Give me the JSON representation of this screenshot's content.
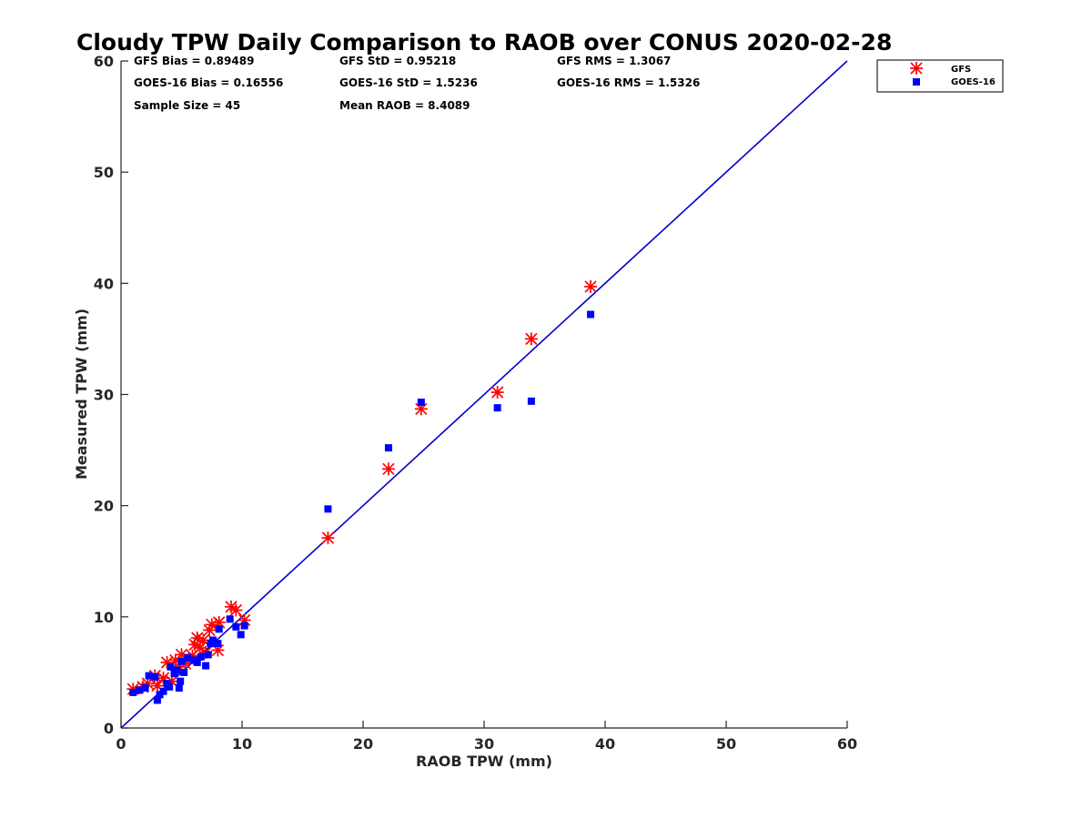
{
  "chart_data": {
    "type": "scatter",
    "title": "Cloudy TPW Daily Comparison to RAOB over CONUS 2020-02-28",
    "xlabel": "RAOB TPW (mm)",
    "ylabel": "Measured TPW (mm)",
    "xlim": [
      0,
      60
    ],
    "ylim": [
      0,
      60
    ],
    "xticks": [
      0,
      10,
      20,
      30,
      40,
      50,
      60
    ],
    "yticks": [
      0,
      10,
      20,
      30,
      40,
      50,
      60
    ],
    "grid": false,
    "legend_position": "outside-top-right",
    "reference_line": {
      "x": [
        0,
        60
      ],
      "y": [
        0,
        60
      ],
      "color": "#0000cc"
    },
    "stats": {
      "gfs_bias": "GFS Bias = 0.89489",
      "gfs_std": "GFS StD = 0.95218",
      "gfs_rms": "GFS RMS = 1.3067",
      "goes_bias": "GOES-16 Bias = 0.16556",
      "goes_std": "GOES-16 StD = 1.5236",
      "goes_rms": "GOES-16 RMS = 1.5326",
      "sample_size": "Sample Size = 45",
      "mean_raob": "Mean RAOB = 8.4089"
    },
    "series": [
      {
        "name": "GFS",
        "marker": "asterisk",
        "color": "#ff0000",
        "points": [
          [
            1.0,
            3.5
          ],
          [
            1.8,
            3.7
          ],
          [
            2.2,
            4.0
          ],
          [
            2.8,
            4.7
          ],
          [
            3.0,
            3.8
          ],
          [
            3.5,
            4.5
          ],
          [
            3.8,
            5.9
          ],
          [
            4.2,
            4.2
          ],
          [
            4.5,
            6.1
          ],
          [
            4.8,
            5.5
          ],
          [
            5.0,
            6.6
          ],
          [
            5.3,
            5.8
          ],
          [
            5.6,
            6.2
          ],
          [
            5.9,
            6.5
          ],
          [
            6.1,
            7.5
          ],
          [
            6.3,
            8.1
          ],
          [
            6.5,
            7.2
          ],
          [
            6.8,
            7.9
          ],
          [
            7.0,
            6.8
          ],
          [
            7.3,
            8.8
          ],
          [
            7.5,
            9.3
          ],
          [
            8.0,
            7.0
          ],
          [
            8.1,
            9.5
          ],
          [
            9.1,
            10.9
          ],
          [
            9.5,
            10.6
          ],
          [
            10.2,
            9.7
          ],
          [
            17.1,
            17.1
          ],
          [
            22.1,
            23.3
          ],
          [
            24.8,
            28.7
          ],
          [
            31.1,
            30.2
          ],
          [
            33.9,
            35.0
          ],
          [
            38.8,
            39.7
          ]
        ]
      },
      {
        "name": "GOES-16",
        "marker": "square",
        "color": "#0000ff",
        "points": [
          [
            1.0,
            3.2
          ],
          [
            1.5,
            3.4
          ],
          [
            2.0,
            3.6
          ],
          [
            2.3,
            4.7
          ],
          [
            2.8,
            4.6
          ],
          [
            3.0,
            2.5
          ],
          [
            3.2,
            3.0
          ],
          [
            3.5,
            3.3
          ],
          [
            3.8,
            4.0
          ],
          [
            4.0,
            3.7
          ],
          [
            4.1,
            5.5
          ],
          [
            4.4,
            4.9
          ],
          [
            4.6,
            5.2
          ],
          [
            4.8,
            3.6
          ],
          [
            4.9,
            4.2
          ],
          [
            5.0,
            6.0
          ],
          [
            5.2,
            5.0
          ],
          [
            5.5,
            6.3
          ],
          [
            6.0,
            6.1
          ],
          [
            6.3,
            5.9
          ],
          [
            6.6,
            6.4
          ],
          [
            7.0,
            5.6
          ],
          [
            7.2,
            6.6
          ],
          [
            7.4,
            7.6
          ],
          [
            7.6,
            7.9
          ],
          [
            8.0,
            7.6
          ],
          [
            8.1,
            8.9
          ],
          [
            9.0,
            9.8
          ],
          [
            9.5,
            9.1
          ],
          [
            9.9,
            8.4
          ],
          [
            10.2,
            9.2
          ],
          [
            17.1,
            19.7
          ],
          [
            22.1,
            25.2
          ],
          [
            24.8,
            29.3
          ],
          [
            31.1,
            28.8
          ],
          [
            33.9,
            29.4
          ],
          [
            38.8,
            37.2
          ]
        ]
      }
    ]
  }
}
